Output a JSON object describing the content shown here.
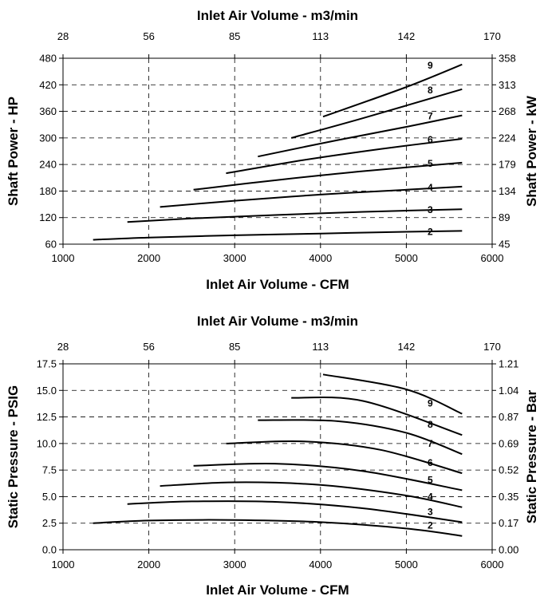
{
  "chart_data": [
    {
      "type": "line",
      "top_axis_label": "Inlet Air Volume - m3/min",
      "top_ticks": [
        "28",
        "56",
        "85",
        "113",
        "142",
        "170"
      ],
      "xlabel": "Inlet Air Volume - CFM",
      "x_ticks": [
        "1000",
        "2000",
        "3000",
        "4000",
        "5000",
        "6000"
      ],
      "xlim": [
        1000,
        6000
      ],
      "ylabel": "Shaft Power - HP",
      "y_ticks": [
        "60",
        "120",
        "180",
        "240",
        "300",
        "360",
        "420",
        "480"
      ],
      "ylim": [
        60,
        480
      ],
      "y2label": "Shaft Power - kW",
      "y2_ticks": [
        "45",
        "89",
        "134",
        "179",
        "224",
        "268",
        "313",
        "358"
      ],
      "grid": "dashed",
      "series": [
        {
          "name": "2",
          "x": [
            1350,
            2000,
            3000,
            4000,
            5000,
            5650
          ],
          "y": [
            70,
            75,
            80,
            84,
            88,
            90
          ]
        },
        {
          "name": "3",
          "x": [
            1750,
            2500,
            3500,
            4500,
            5650
          ],
          "y": [
            110,
            118,
            126,
            133,
            139
          ]
        },
        {
          "name": "4",
          "x": [
            2130,
            3000,
            4000,
            5000,
            5650
          ],
          "y": [
            144,
            158,
            172,
            183,
            190
          ]
        },
        {
          "name": "5",
          "x": [
            2520,
            3500,
            4500,
            5650
          ],
          "y": [
            183,
            205,
            225,
            244
          ]
        },
        {
          "name": "6",
          "x": [
            2900,
            3800,
            4700,
            5650
          ],
          "y": [
            220,
            250,
            275,
            298
          ]
        },
        {
          "name": "7",
          "x": [
            3270,
            4200,
            5000,
            5650
          ],
          "y": [
            258,
            295,
            325,
            351
          ]
        },
        {
          "name": "8",
          "x": [
            3660,
            4500,
            5650
          ],
          "y": [
            300,
            345,
            410
          ]
        },
        {
          "name": "9",
          "x": [
            4030,
            5000,
            5650
          ],
          "y": [
            348,
            415,
            466
          ]
        }
      ]
    },
    {
      "type": "line",
      "top_axis_label": "Inlet Air Volume - m3/min",
      "top_ticks": [
        "28",
        "56",
        "85",
        "113",
        "142",
        "170"
      ],
      "xlabel": "Inlet Air Volume - CFM",
      "x_ticks": [
        "1000",
        "2000",
        "3000",
        "4000",
        "5000",
        "6000"
      ],
      "xlim": [
        1000,
        6000
      ],
      "ylabel": "Static Pressure - PSIG",
      "y_ticks": [
        "0.0",
        "2.5",
        "5.0",
        "7.5",
        "10.0",
        "12.5",
        "15.0",
        "17.5"
      ],
      "ylim": [
        0,
        17.5
      ],
      "y2label": "Static Pressure - Bar",
      "y2_ticks": [
        "0.00",
        "0.17",
        "0.35",
        "0.52",
        "0.69",
        "0.87",
        "1.04",
        "1.21"
      ],
      "grid": "dashed",
      "series": [
        {
          "name": "2",
          "x": [
            1350,
            2000,
            3000,
            4000,
            5000,
            5650
          ],
          "y": [
            2.5,
            2.75,
            2.8,
            2.6,
            2.0,
            1.3
          ]
        },
        {
          "name": "3",
          "x": [
            1750,
            2500,
            3500,
            4500,
            5650
          ],
          "y": [
            4.3,
            4.55,
            4.5,
            3.9,
            2.6
          ]
        },
        {
          "name": "4",
          "x": [
            2130,
            3000,
            4000,
            5000,
            5650
          ],
          "y": [
            6.0,
            6.35,
            6.1,
            5.1,
            4.0
          ]
        },
        {
          "name": "5",
          "x": [
            2520,
            3500,
            4500,
            5650
          ],
          "y": [
            7.9,
            8.1,
            7.4,
            5.6
          ]
        },
        {
          "name": "6",
          "x": [
            2900,
            3800,
            4700,
            5650
          ],
          "y": [
            10.0,
            10.2,
            9.4,
            7.2
          ]
        },
        {
          "name": "7",
          "x": [
            3270,
            4200,
            5000,
            5650
          ],
          "y": [
            12.2,
            12.1,
            11.0,
            9.0
          ]
        },
        {
          "name": "8",
          "x": [
            3660,
            4500,
            5650
          ],
          "y": [
            14.3,
            14.0,
            10.8
          ]
        },
        {
          "name": "9",
          "x": [
            4030,
            5000,
            5650
          ],
          "y": [
            16.5,
            15.1,
            12.8
          ]
        }
      ]
    }
  ]
}
